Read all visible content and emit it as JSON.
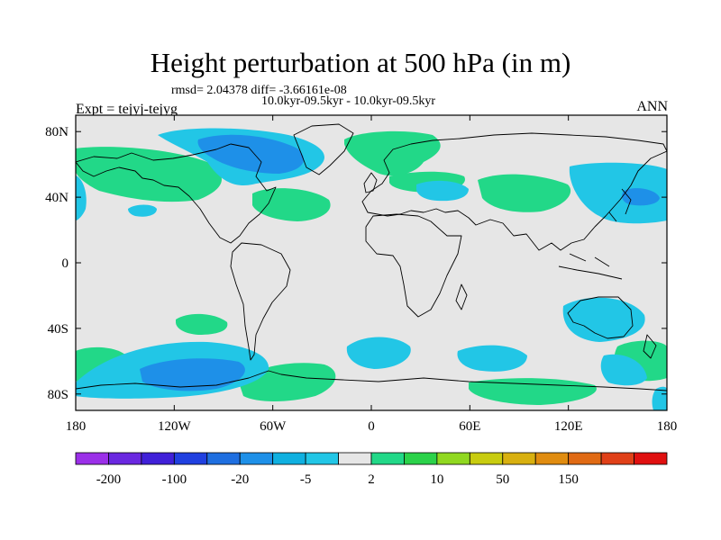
{
  "title": "Height perturbation at 500 hPa (in m)",
  "stats": "rmsd= 2.04378  diff= -3.66161e-08",
  "period": "10.0kyr-09.5kyr - 10.0kyr-09.5kyr",
  "expt": "Expt = tejyj-tejyg",
  "season": "ANN",
  "map": {
    "projection": "cylindrical-equidistant",
    "lon_range": [
      -180,
      180
    ],
    "lat_range": [
      -90,
      90
    ],
    "lat_ticks": [
      {
        "value": 80,
        "label": "80N"
      },
      {
        "value": 40,
        "label": "40N"
      },
      {
        "value": 0,
        "label": "0"
      },
      {
        "value": -40,
        "label": "40S"
      },
      {
        "value": -80,
        "label": "80S"
      }
    ],
    "lon_ticks": [
      {
        "value": -180,
        "label": "180"
      },
      {
        "value": -120,
        "label": "120W"
      },
      {
        "value": -60,
        "label": "60W"
      },
      {
        "value": 0,
        "label": "0"
      },
      {
        "value": 60,
        "label": "60E"
      },
      {
        "value": 120,
        "label": "120E"
      },
      {
        "value": 180,
        "label": "180"
      }
    ],
    "background_color": "#e6e6e6"
  },
  "colorbar": {
    "colors": [
      "#9b30e8",
      "#6a28e0",
      "#4020d8",
      "#2040e0",
      "#1f6fe0",
      "#1e90e8",
      "#10b0e0",
      "#22c6e6",
      "#e6e6e6",
      "#22d888",
      "#2bd24a",
      "#90d820",
      "#c8cc10",
      "#d8b010",
      "#e08c10",
      "#e06a14",
      "#e04018",
      "#e01010"
    ],
    "labels": [
      {
        "after_box": 1,
        "text": "-200"
      },
      {
        "after_box": 3,
        "text": "-100"
      },
      {
        "after_box": 5,
        "text": "-20"
      },
      {
        "after_box": 7,
        "text": "-5"
      },
      {
        "after_box": 9,
        "text": "2"
      },
      {
        "after_box": 11,
        "text": "10"
      },
      {
        "after_box": 13,
        "text": "50"
      },
      {
        "after_box": 15,
        "text": "150"
      }
    ]
  }
}
